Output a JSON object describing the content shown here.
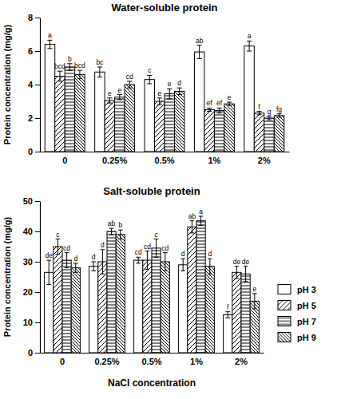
{
  "chart_data": [
    {
      "type": "bar",
      "title": "Water-soluble protein",
      "y_label": "Protein concentration (mg/g)",
      "categories": [
        "0",
        "0.25%",
        "0.5%",
        "1%",
        "2%"
      ],
      "ylim": [
        0,
        8
      ],
      "yticks": [
        0,
        2,
        4,
        6,
        8
      ],
      "series": [
        {
          "color": "#ffffff",
          "values": [
            6.4,
            4.75,
            4.3,
            5.95,
            6.3
          ],
          "errors": [
            0.25,
            0.3,
            0.25,
            0.4,
            0.3
          ],
          "letters": [
            "a",
            "bc",
            "c",
            "ab",
            "a"
          ]
        },
        {
          "color": "#ffffff",
          "values": [
            4.5,
            3.05,
            3.0,
            2.5,
            2.3
          ],
          "errors": [
            0.3,
            0.15,
            0.2,
            0.1,
            0.1
          ],
          "letters": [
            "bcd",
            "e",
            "e",
            "ef",
            "f"
          ]
        },
        {
          "color": "#ffffff",
          "values": [
            5.05,
            3.25,
            3.45,
            2.45,
            2.0
          ],
          "errors": [
            0.2,
            0.15,
            0.3,
            0.15,
            0.1
          ],
          "letters": [
            "b",
            "e",
            "e",
            "ef",
            "g"
          ]
        },
        {
          "color": "#ffffff",
          "values": [
            4.6,
            4.0,
            3.6,
            2.85,
            2.15
          ],
          "errors": [
            0.25,
            0.2,
            0.2,
            0.1,
            0.1
          ],
          "letters": [
            "bcd",
            "cd",
            "d",
            "e",
            "fg"
          ]
        }
      ]
    },
    {
      "type": "bar",
      "title": "Salt-soluble protein",
      "y_label": "Protein concentration (mg/g)",
      "x_label": "NaCl concentration",
      "categories": [
        "0",
        "0.25%",
        "0.5%",
        "1%",
        "2%"
      ],
      "ylim": [
        0,
        50
      ],
      "yticks": [
        0,
        10,
        20,
        30,
        40,
        50
      ],
      "legend": "right",
      "series": [
        {
          "name": "pH 3",
          "color": "#ffffff",
          "values": [
            26.5,
            28.5,
            30.5,
            29,
            12.5
          ],
          "errors": [
            4,
            1.5,
            1,
            2,
            1
          ],
          "letters": [
            "de",
            "d",
            "cd",
            "d",
            "f"
          ]
        },
        {
          "name": "pH 5",
          "color": "#ffffff",
          "values": [
            35,
            30,
            30.5,
            41.5,
            26.5
          ],
          "errors": [
            2.5,
            4,
            3,
            2,
            2
          ],
          "letters": [
            "c",
            "d",
            "cd",
            "ab",
            "de"
          ]
        },
        {
          "name": "pH 7",
          "color": "#ffffff",
          "values": [
            30.5,
            40,
            34.5,
            43.5,
            26
          ],
          "errors": [
            2.5,
            1,
            3,
            1.5,
            2.5
          ],
          "letters": [
            "cd",
            "ab",
            "c",
            "a",
            "de"
          ]
        },
        {
          "name": "pH 9",
          "color": "#ffffff",
          "values": [
            28,
            39,
            30,
            28.5,
            17
          ],
          "errors": [
            1.5,
            1.5,
            3,
            2.5,
            2.5
          ],
          "letters": [
            "d",
            "b",
            "cd",
            "d",
            "e"
          ]
        }
      ]
    }
  ]
}
